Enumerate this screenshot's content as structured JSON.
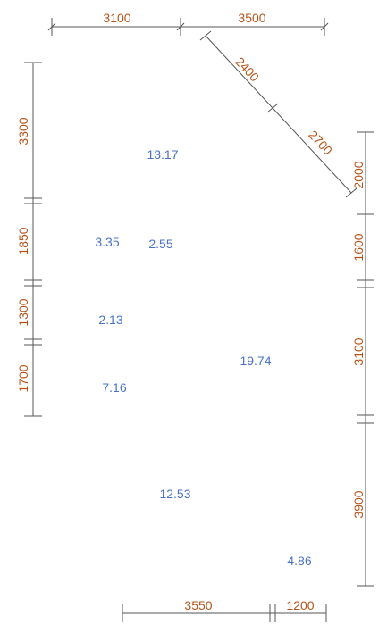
{
  "colors": {
    "dimension_text": "#b5541a",
    "area_text": "#4a73c6",
    "dimension_line": "#555555",
    "background": "#ffffff"
  },
  "dimensions": {
    "top": [
      "3100",
      "3500"
    ],
    "diagonal": [
      "2400",
      "2700"
    ],
    "left": [
      "3300",
      "1850",
      "1300",
      "1700"
    ],
    "right": [
      "2000",
      "1600",
      "3100",
      "3900"
    ],
    "bottom": [
      "3550",
      "1200"
    ]
  },
  "areas": [
    "13.17",
    "3.35",
    "2.55",
    "2.13",
    "19.74",
    "7.16",
    "12.53",
    "4.86"
  ]
}
